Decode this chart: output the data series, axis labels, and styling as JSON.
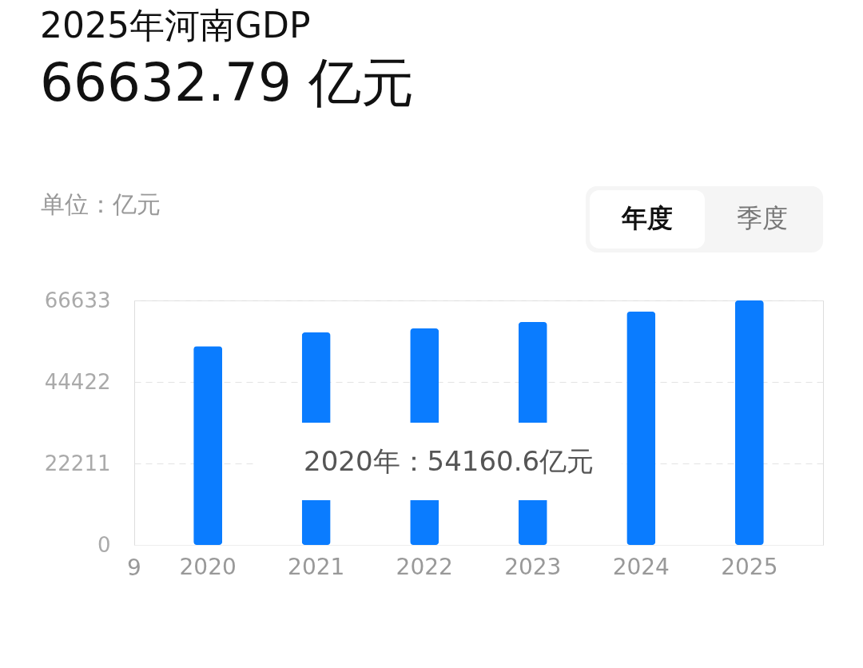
{
  "chart_data": {
    "type": "bar",
    "title": "2025年河南GDP",
    "subtitle": "66632.79 亿元",
    "ylabel": "单位：亿元",
    "categories": [
      "2020",
      "2021",
      "2022",
      "2023",
      "2024",
      "2025"
    ],
    "series": [
      {
        "color": "#0a7cff",
        "values": [
          54160.6,
          57900,
          59000,
          60750,
          63580,
          66632.79
        ]
      }
    ],
    "ylim": [
      0,
      66633
    ],
    "yticks": [
      0,
      22211,
      44422,
      66633
    ],
    "grid": "y",
    "annotations": [
      "2020年：54160.6亿元",
      "年度",
      "季度",
      "9"
    ]
  }
}
